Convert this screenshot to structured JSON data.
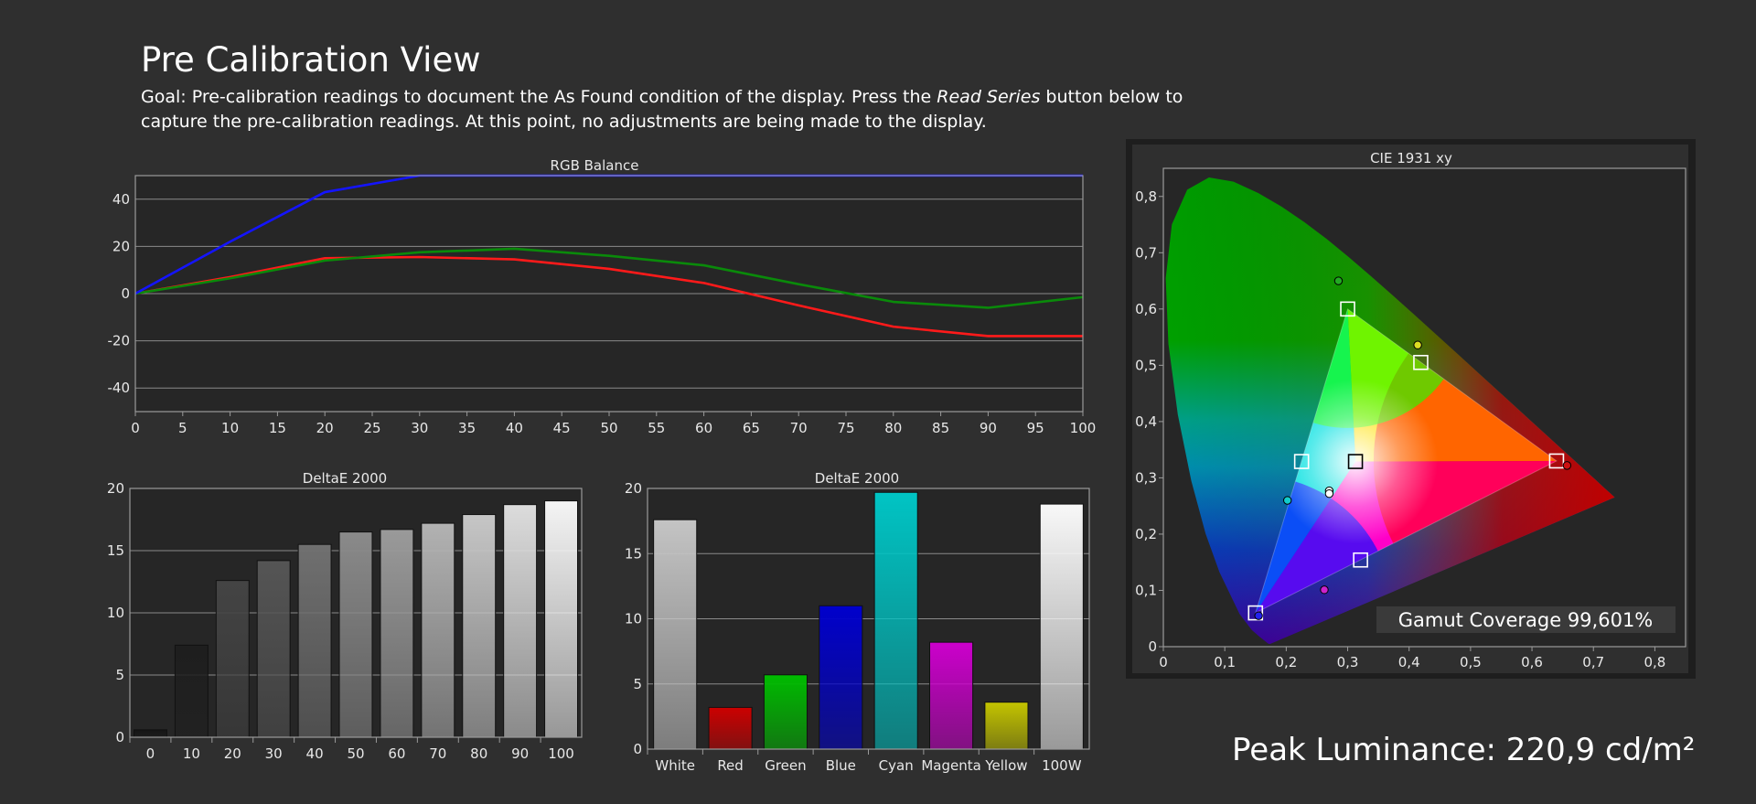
{
  "page": {
    "title": "Pre Calibration View",
    "goal_before": "Goal: Pre-calibration readings to document the As Found condition of the display. Press the ",
    "goal_emphasis": "Read Series",
    "goal_after": " button below to capture the pre-calibration readings. At this point, no adjustments are being made to the display.",
    "peak_luminance": "Peak Luminance: 220,9 cd/m²"
  },
  "chart_data": [
    {
      "type": "line",
      "title": "RGB Balance",
      "x": [
        0,
        10,
        20,
        30,
        40,
        50,
        60,
        70,
        80,
        90,
        100
      ],
      "xticks": [
        "0",
        "5",
        "10",
        "15",
        "20",
        "25",
        "30",
        "35",
        "40",
        "45",
        "50",
        "55",
        "60",
        "65",
        "70",
        "75",
        "80",
        "85",
        "90",
        "95",
        "100"
      ],
      "yticks": [
        "40",
        "20",
        "0",
        "-20",
        "-40"
      ],
      "xlim": [
        0,
        100
      ],
      "ylim": [
        -50,
        50
      ],
      "grid": true,
      "series": [
        {
          "color": "#ff1a1a",
          "values": [
            0,
            7,
            15,
            15.5,
            14.5,
            10.5,
            4.5,
            -5,
            -14,
            -18,
            -18
          ]
        },
        {
          "color": "#0a8a0a",
          "values": [
            0,
            6.5,
            14,
            17.5,
            19,
            16,
            12,
            4,
            -3.5,
            -6,
            -1.5
          ]
        },
        {
          "color": "#1414ff",
          "values": [
            0,
            22,
            43,
            50,
            50,
            50,
            50,
            50,
            50,
            50,
            50
          ]
        }
      ]
    },
    {
      "type": "bar",
      "title": "DeltaE 2000",
      "categories": [
        "0",
        "10",
        "20",
        "30",
        "40",
        "50",
        "60",
        "70",
        "80",
        "90",
        "100"
      ],
      "values": [
        0.6,
        7.4,
        12.6,
        14.2,
        15.5,
        16.5,
        16.7,
        17.2,
        17.9,
        18.7,
        19.0
      ],
      "yticks": [
        "20",
        "15",
        "10",
        "5",
        "0"
      ],
      "ylim": [
        0,
        20
      ],
      "grid": true,
      "colors": [
        "#151515",
        "#1e1e1e",
        "#444444",
        "#555555",
        "#707070",
        "#8a8a8a",
        "#9a9a9a",
        "#b2b2b2",
        "#c6c6c6",
        "#dcdcdc",
        "#f4f4f4"
      ]
    },
    {
      "type": "bar",
      "title": "DeltaE 2000",
      "categories": [
        "White",
        "Red",
        "Green",
        "Blue",
        "Cyan",
        "Magenta",
        "Yellow",
        "100W"
      ],
      "values": [
        17.6,
        3.2,
        5.7,
        11.0,
        19.7,
        8.2,
        3.6,
        18.8
      ],
      "yticks": [
        "20",
        "15",
        "10",
        "5",
        "0"
      ],
      "ylim": [
        0,
        20
      ],
      "grid": true,
      "colors": [
        "#c4c4c4",
        "#cc0000",
        "#00bb00",
        "#0000cc",
        "#00c4c4",
        "#cc00cc",
        "#c4c400",
        "#f8f8f8"
      ]
    },
    {
      "type": "scatter",
      "title": "CIE 1931 xy",
      "xticks": [
        "0",
        "0,1",
        "0,2",
        "0,3",
        "0,4",
        "0,5",
        "0,6",
        "0,7",
        "0,8"
      ],
      "yticks": [
        "0,8",
        "0,7",
        "0,6",
        "0,5",
        "0,4",
        "0,3",
        "0,2",
        "0,1",
        "0"
      ],
      "xlim": [
        0,
        0.85
      ],
      "ylim": [
        0,
        0.85
      ],
      "targets": [
        {
          "name": "red",
          "x": 0.64,
          "y": 0.33,
          "color": "#ffffff"
        },
        {
          "name": "green",
          "x": 0.3,
          "y": 0.6,
          "color": "#ffffff"
        },
        {
          "name": "blue",
          "x": 0.15,
          "y": 0.06,
          "color": "#ffffff"
        },
        {
          "name": "cyan",
          "x": 0.225,
          "y": 0.329,
          "color": "#ffffff"
        },
        {
          "name": "magenta",
          "x": 0.321,
          "y": 0.154,
          "color": "#ffffff"
        },
        {
          "name": "yellow",
          "x": 0.419,
          "y": 0.505,
          "color": "#ffffff"
        },
        {
          "name": "white",
          "x": 0.3127,
          "y": 0.329,
          "color": "#000000"
        }
      ],
      "measured": [
        {
          "name": "red",
          "x": 0.657,
          "y": 0.322,
          "color": "#cc1111"
        },
        {
          "name": "green",
          "x": 0.285,
          "y": 0.65,
          "color": "#22aa22"
        },
        {
          "name": "blue",
          "x": 0.155,
          "y": 0.055,
          "color": "#2222ee"
        },
        {
          "name": "cyan",
          "x": 0.202,
          "y": 0.26,
          "color": "#11cccc"
        },
        {
          "name": "magenta",
          "x": 0.262,
          "y": 0.101,
          "color": "#cc22cc"
        },
        {
          "name": "yellow",
          "x": 0.414,
          "y": 0.536,
          "color": "#dddd22"
        },
        {
          "name": "white",
          "x": 0.27,
          "y": 0.277,
          "color": "#ffffff"
        },
        {
          "name": "100W",
          "x": 0.27,
          "y": 0.272,
          "color": "#ffffff"
        }
      ],
      "gamut_coverage": "Gamut Coverage 99,601%"
    }
  ]
}
